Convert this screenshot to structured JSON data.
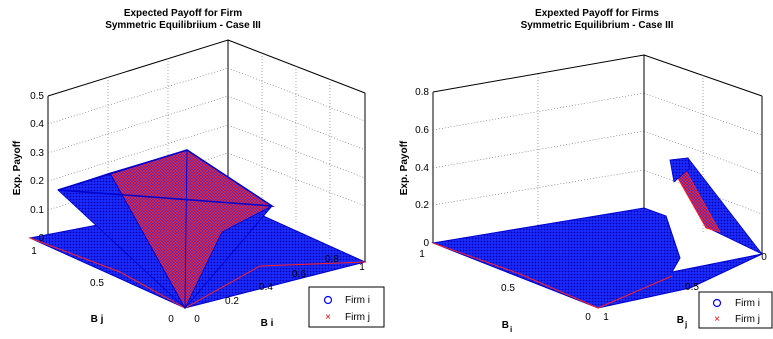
{
  "chart_data": [
    {
      "type": "scatter",
      "title": "Expected Payoff for Firm",
      "subtitle": "Symmetric Equilibriium - Case III",
      "xlabel": "B i",
      "ylabel": "B j",
      "zlabel": "Exp. Payoff",
      "xlim": [
        0,
        1
      ],
      "ylim": [
        0,
        1
      ],
      "zlim": [
        0,
        0.5
      ],
      "x_ticks": [
        "0",
        "0.2",
        "0.4",
        "0.6",
        "0.8",
        "1"
      ],
      "y_ticks": [
        "0",
        "0.5",
        "1"
      ],
      "z_ticks": [
        "0",
        "0.1",
        "0.2",
        "0.3",
        "0.4",
        "0.5"
      ],
      "grid": true,
      "legend_position": "bottom-right",
      "series": [
        {
          "name": "Firm i",
          "marker": "circle",
          "color": "#0000ff",
          "surface_corners_xyz": [
            [
              0,
              0,
              0
            ],
            [
              0,
              1,
              0
            ],
            [
              1,
              1,
              0
            ],
            [
              1,
              0,
              0
            ],
            [
              0.45,
              0.45,
              0.3
            ]
          ]
        },
        {
          "name": "Firm j",
          "marker": "x",
          "color": "#ff0000",
          "surface_corners_xyz": [
            [
              0,
              0,
              0
            ],
            [
              0,
              1,
              0
            ],
            [
              1,
              1,
              0
            ],
            [
              1,
              0,
              0
            ],
            [
              0.45,
              0.45,
              0.3
            ]
          ]
        }
      ]
    },
    {
      "type": "scatter",
      "title": "Expexted Payoff for Firms",
      "subtitle": "Symmetric Equilibrium - Case III",
      "xlabel": "B",
      "xlabel_sub": "i",
      "ylabel": "B",
      "ylabel_sub": "j",
      "zlabel": "Exp. Payoff",
      "xlim": [
        0,
        1
      ],
      "ylim": [
        0,
        1
      ],
      "zlim": [
        0,
        0.8
      ],
      "x_ticks": [
        "0",
        "0.5",
        "1"
      ],
      "y_ticks": [
        "0",
        "0.5",
        "1"
      ],
      "z_ticks": [
        "0",
        "0.2",
        "0.4",
        "0.6",
        "0.8"
      ],
      "grid": true,
      "legend_position": "bottom-right",
      "series": [
        {
          "name": "Firm i",
          "marker": "circle",
          "color": "#0000ff",
          "surface_corners_xyz": [
            [
              0,
              0,
              0
            ],
            [
              1,
              0,
              0
            ],
            [
              1,
              1,
              0
            ],
            [
              0,
              1,
              0
            ],
            [
              0.5,
              0.9,
              0.4
            ]
          ]
        },
        {
          "name": "Firm j",
          "marker": "x",
          "color": "#ff0000",
          "surface_corners_xyz": [
            [
              0,
              0,
              0
            ],
            [
              1,
              0,
              0
            ],
            [
              1,
              1,
              0
            ],
            [
              0,
              1,
              0
            ],
            [
              0.5,
              0.9,
              0.4
            ]
          ]
        }
      ]
    }
  ]
}
